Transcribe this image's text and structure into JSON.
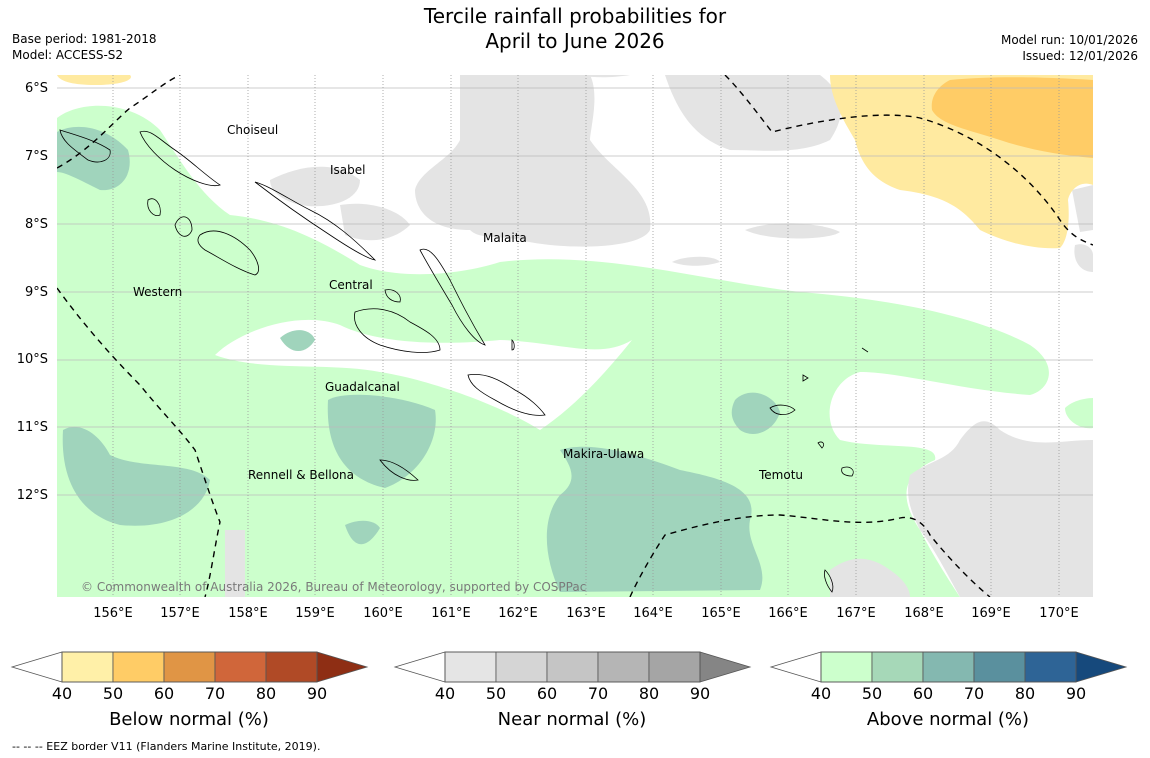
{
  "title": {
    "line1": "Tercile rainfall probabilities for",
    "line2": "April to June 2026"
  },
  "meta_left": {
    "base_period": "Base period: 1981-2018",
    "model": "Model: ACCESS-S2"
  },
  "meta_right": {
    "model_run": "Model run: 10/01/2026",
    "issued": "Issued: 12/01/2026"
  },
  "map": {
    "lat_labels": [
      "6°S",
      "7°S",
      "8°S",
      "9°S",
      "10°S",
      "11°S",
      "12°S"
    ],
    "lon_labels": [
      "156°E",
      "157°E",
      "158°E",
      "159°E",
      "160°E",
      "161°E",
      "162°E",
      "163°E",
      "164°E",
      "165°E",
      "166°E",
      "167°E",
      "168°E",
      "169°E",
      "170°E"
    ],
    "regions": [
      "Choiseul",
      "Isabel",
      "Malaita",
      "Western",
      "Central",
      "Guadalcanal",
      "Makira-Ulawa",
      "Rennell & Bellona",
      "Temotu"
    ],
    "copyright": "© Commonwealth of Australia 2026, Bureau of Meteorology, supported by COSPPac"
  },
  "colorbars": [
    {
      "title": "Below normal (%)",
      "ticks": [
        "40",
        "50",
        "60",
        "70",
        "80",
        "90"
      ],
      "colors": [
        "#fff0a8",
        "#ffcc66",
        "#e09545",
        "#d0663a",
        "#b04a26",
        "#8e2e14"
      ]
    },
    {
      "title": "Near normal (%)",
      "ticks": [
        "40",
        "50",
        "60",
        "70",
        "80",
        "90"
      ],
      "colors": [
        "#e5e5e5",
        "#d5d5d5",
        "#c5c5c5",
        "#b5b5b5",
        "#a5a5a5",
        "#858585"
      ]
    },
    {
      "title": "Above normal (%)",
      "ticks": [
        "40",
        "50",
        "60",
        "70",
        "80",
        "90"
      ],
      "colors": [
        "#ccffcc",
        "#a6d8b8",
        "#84b8b0",
        "#5a909e",
        "#2e6496",
        "#16497c"
      ]
    }
  ],
  "footnote": "--  --  -- EEZ border V11 (Flanders Marine Institute, 2019)."
}
